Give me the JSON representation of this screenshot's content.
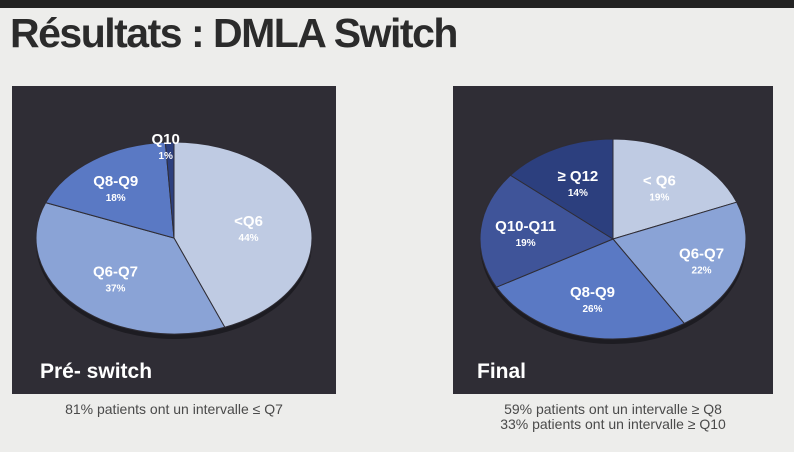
{
  "slide": {
    "title": "Résultats : DMLA Switch"
  },
  "chart_data": [
    {
      "type": "pie",
      "caption": "Pré- switch",
      "footnote": [
        "81% patients ont un intervalle ≤ Q7"
      ],
      "slices": [
        {
          "label": "<Q6",
          "value": 44,
          "value_label": "44%",
          "color": "#bfcbe3"
        },
        {
          "label": "Q6-Q7",
          "value": 37,
          "value_label": "37%",
          "color": "#8aa3d6"
        },
        {
          "label": "Q8-Q9",
          "value": 18,
          "value_label": "18%",
          "color": "#5a79c4"
        },
        {
          "label": "Q10",
          "value": 1,
          "value_label": "1%",
          "color": "#2c3f7e"
        }
      ]
    },
    {
      "type": "pie",
      "caption": "Final",
      "footnote": [
        "59% patients ont un intervalle ≥ Q8",
        "33% patients ont un intervalle ≥ Q10"
      ],
      "slices": [
        {
          "label": "< Q6",
          "value": 19,
          "value_label": "19%",
          "color": "#bfcbe3"
        },
        {
          "label": "Q6-Q7",
          "value": 22,
          "value_label": "22%",
          "color": "#8aa3d6"
        },
        {
          "label": "Q8-Q9",
          "value": 26,
          "value_label": "26%",
          "color": "#5a79c4"
        },
        {
          "label": "Q10-Q11",
          "value": 19,
          "value_label": "19%",
          "color": "#3f5499"
        },
        {
          "label": "≥ Q12",
          "value": 14,
          "value_label": "14%",
          "color": "#2c3f7e"
        }
      ]
    }
  ]
}
